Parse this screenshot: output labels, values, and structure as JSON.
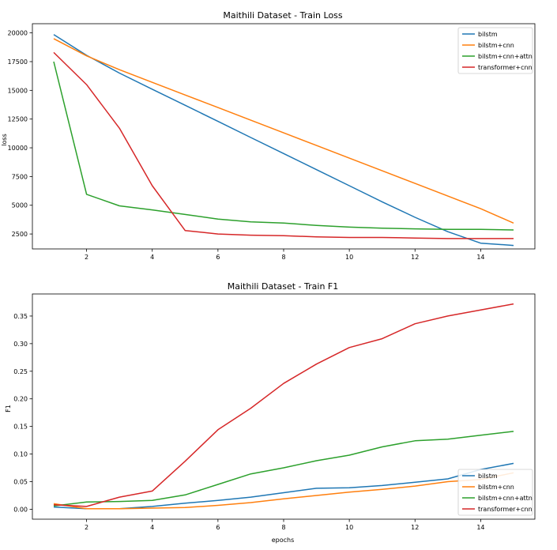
{
  "colors": {
    "bilstm": "#1f77b4",
    "bilstm_cnn": "#ff7f0e",
    "bilstm_cnn_attn": "#2ca02c",
    "transformer_cnn": "#d62728"
  },
  "chart_data": [
    {
      "type": "line",
      "title": "Maithili Dataset - Train Loss",
      "xlabel": "",
      "ylabel": "loss",
      "x": [
        1,
        2,
        3,
        4,
        5,
        6,
        7,
        8,
        9,
        10,
        11,
        12,
        13,
        14,
        15
      ],
      "xlim": [
        0.35,
        15.65
      ],
      "ylim": [
        1200,
        20800
      ],
      "xticks": [
        2,
        4,
        6,
        8,
        10,
        12,
        14
      ],
      "xtick_labels": [
        "2",
        "4",
        "6",
        "8",
        "10",
        "12",
        "14"
      ],
      "yticks": [
        2500,
        5000,
        7500,
        10000,
        12500,
        15000,
        17500,
        20000
      ],
      "ytick_labels": [
        "2500",
        "5000",
        "7500",
        "10000",
        "12500",
        "15000",
        "17500",
        "20000"
      ],
      "legend_position": "top-right",
      "series": [
        {
          "name": "bilstm",
          "values": [
            19850,
            18050,
            16500,
            15100,
            13700,
            12300,
            10900,
            9500,
            8100,
            6700,
            5300,
            3950,
            2700,
            1700,
            1500
          ]
        },
        {
          "name": "bilstm+cnn",
          "values": [
            19500,
            18000,
            16800,
            15700,
            14600,
            13500,
            12400,
            11300,
            10200,
            9100,
            8000,
            6900,
            5800,
            4700,
            3450
          ]
        },
        {
          "name": "bilstm+cnn+attn",
          "values": [
            17500,
            5950,
            4950,
            4600,
            4200,
            3800,
            3550,
            3450,
            3250,
            3100,
            3000,
            2950,
            2900,
            2900,
            2850
          ]
        },
        {
          "name": "transformer+cnn",
          "values": [
            18300,
            15500,
            11700,
            6700,
            2800,
            2500,
            2400,
            2350,
            2250,
            2200,
            2200,
            2150,
            2100,
            2100,
            2100
          ]
        }
      ]
    },
    {
      "type": "line",
      "title": "Maithili Dataset - Train F1",
      "xlabel": "epochs",
      "ylabel": "F1",
      "x": [
        1,
        2,
        3,
        4,
        5,
        6,
        7,
        8,
        9,
        10,
        11,
        12,
        13,
        14,
        15
      ],
      "xlim": [
        0.35,
        15.65
      ],
      "ylim": [
        -0.018,
        0.39
      ],
      "xticks": [
        2,
        4,
        6,
        8,
        10,
        12,
        14
      ],
      "xtick_labels": [
        "2",
        "4",
        "6",
        "8",
        "10",
        "12",
        "14"
      ],
      "yticks": [
        0.0,
        0.05,
        0.1,
        0.15,
        0.2,
        0.25,
        0.3,
        0.35
      ],
      "ytick_labels": [
        "0.00",
        "0.05",
        "0.10",
        "0.15",
        "0.20",
        "0.25",
        "0.30",
        "0.35"
      ],
      "legend_position": "bottom-right",
      "series": [
        {
          "name": "bilstm",
          "values": [
            0.004,
            0.001,
            0.001,
            0.005,
            0.011,
            0.016,
            0.022,
            0.03,
            0.038,
            0.039,
            0.043,
            0.049,
            0.055,
            0.072,
            0.083
          ]
        },
        {
          "name": "bilstm+cnn",
          "values": [
            0.01,
            0.001,
            0.001,
            0.002,
            0.003,
            0.007,
            0.012,
            0.019,
            0.025,
            0.031,
            0.036,
            0.042,
            0.05,
            0.054,
            0.066
          ]
        },
        {
          "name": "bilstm+cnn+attn",
          "values": [
            0.006,
            0.013,
            0.014,
            0.016,
            0.026,
            0.045,
            0.064,
            0.075,
            0.088,
            0.098,
            0.113,
            0.124,
            0.127,
            0.134,
            0.141
          ]
        },
        {
          "name": "transformer+cnn",
          "values": [
            0.008,
            0.005,
            0.022,
            0.033,
            0.087,
            0.144,
            0.183,
            0.228,
            0.263,
            0.293,
            0.309,
            0.336,
            0.35,
            0.361,
            0.372
          ]
        }
      ]
    }
  ]
}
